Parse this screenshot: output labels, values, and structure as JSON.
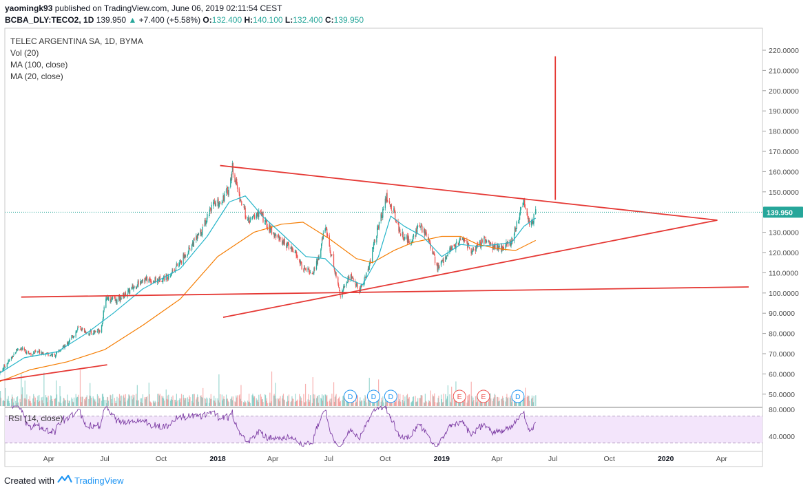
{
  "header": {
    "author": "yaomingk93",
    "published": "published on TradingView.com, June 06, 2019 02:11:54 CEST",
    "symbol": "BCBA_DLY:TECO2, 1D",
    "last": "139.950",
    "change": "+7.400 (+5.58%)",
    "open_label": "O:",
    "open": "132.400",
    "high_label": "H:",
    "high": "140.100",
    "low_label": "L:",
    "low": "132.400",
    "close_label": "C:",
    "close": "139.950"
  },
  "legend": {
    "title": "TELEC ARGENTINA SA, 1D, BYMA",
    "vol": "Vol (20)",
    "ma100": "MA (100, close)",
    "ma20": "MA (20, close)",
    "rsi": "RSI (14, close)"
  },
  "footer": {
    "created_with": "Created with",
    "brand": "TradingView"
  },
  "colors": {
    "up": "#26a69a",
    "down": "#ef5350",
    "ma100": "#f57c00",
    "ma20": "#26b5c9",
    "trendline": "#e53935",
    "rsi_line": "#7e3fa5",
    "rsi_band": "#f3e5fb",
    "price_badge": "#26a69a"
  },
  "chart_data": [
    {
      "type": "candlestick",
      "title": "TELEC ARGENTINA SA, 1D, BYMA",
      "x_ticks": [
        {
          "label": "Apr",
          "date": "2017-04-01",
          "bold": false
        },
        {
          "label": "Jul",
          "date": "2017-07-01",
          "bold": false
        },
        {
          "label": "Oct",
          "date": "2017-10-01",
          "bold": false
        },
        {
          "label": "2018",
          "date": "2018-01-01",
          "bold": true
        },
        {
          "label": "Apr",
          "date": "2018-04-01",
          "bold": false
        },
        {
          "label": "Jul",
          "date": "2018-07-01",
          "bold": false
        },
        {
          "label": "Oct",
          "date": "2018-10-01",
          "bold": false
        },
        {
          "label": "2019",
          "date": "2019-01-01",
          "bold": true
        },
        {
          "label": "Apr",
          "date": "2019-04-01",
          "bold": false
        },
        {
          "label": "Jul",
          "date": "2019-07-01",
          "bold": false
        },
        {
          "label": "Oct",
          "date": "2019-10-01",
          "bold": false
        },
        {
          "label": "2020",
          "date": "2020-01-01",
          "bold": true
        },
        {
          "label": "Apr",
          "date": "2020-04-01",
          "bold": false
        }
      ],
      "y_ticks": [
        50,
        60,
        70,
        80,
        90,
        100,
        110,
        120,
        130,
        140,
        150,
        160,
        170,
        180,
        190,
        200,
        210,
        220
      ],
      "y_tick_labels": [
        "50.0000",
        "60.0000",
        "70.0000",
        "80.0000",
        "90.0000",
        "100.0000",
        "110.0000",
        "120.0000",
        "130.0000",
        "140.0000",
        "150.0000",
        "160.0000",
        "170.0000",
        "180.0000",
        "190.0000",
        "200.0000",
        "210.0000",
        "220.0000"
      ],
      "ylim": [
        45,
        235
      ],
      "last_price": 139.95,
      "last_price_label": "139.950",
      "price_path": [
        [
          "2017-01-09",
          60
        ],
        [
          "2017-01-25",
          66
        ],
        [
          "2017-02-10",
          73
        ],
        [
          "2017-03-01",
          70
        ],
        [
          "2017-03-20",
          71
        ],
        [
          "2017-04-10",
          69
        ],
        [
          "2017-05-01",
          75
        ],
        [
          "2017-05-20",
          83
        ],
        [
          "2017-06-05",
          80
        ],
        [
          "2017-06-25",
          82
        ],
        [
          "2017-07-03",
          98
        ],
        [
          "2017-07-20",
          96
        ],
        [
          "2017-08-10",
          101
        ],
        [
          "2017-09-01",
          107
        ],
        [
          "2017-09-20",
          106
        ],
        [
          "2017-10-10",
          108
        ],
        [
          "2017-11-01",
          115
        ],
        [
          "2017-11-20",
          124
        ],
        [
          "2017-12-05",
          130
        ],
        [
          "2017-12-20",
          142
        ],
        [
          "2018-01-05",
          145
        ],
        [
          "2018-01-20",
          152
        ],
        [
          "2018-01-25",
          162
        ],
        [
          "2018-02-05",
          148
        ],
        [
          "2018-02-20",
          135
        ],
        [
          "2018-03-10",
          140
        ],
        [
          "2018-03-25",
          132
        ],
        [
          "2018-04-15",
          126
        ],
        [
          "2018-05-05",
          121
        ],
        [
          "2018-05-20",
          112
        ],
        [
          "2018-06-05",
          110
        ],
        [
          "2018-06-15",
          118
        ],
        [
          "2018-06-25",
          133
        ],
        [
          "2018-07-10",
          112
        ],
        [
          "2018-07-20",
          99
        ],
        [
          "2018-08-05",
          109
        ],
        [
          "2018-08-20",
          101
        ],
        [
          "2018-09-05",
          113
        ],
        [
          "2018-09-15",
          128
        ],
        [
          "2018-09-25",
          138
        ],
        [
          "2018-10-01",
          148
        ],
        [
          "2018-10-15",
          140
        ],
        [
          "2018-10-25",
          130
        ],
        [
          "2018-11-10",
          125
        ],
        [
          "2018-11-25",
          133
        ],
        [
          "2018-12-10",
          128
        ],
        [
          "2018-12-25",
          112
        ],
        [
          "2019-01-05",
          117
        ],
        [
          "2019-01-20",
          123
        ],
        [
          "2019-02-05",
          127
        ],
        [
          "2019-02-20",
          120
        ],
        [
          "2019-03-10",
          126
        ],
        [
          "2019-03-25",
          123
        ],
        [
          "2019-04-10",
          122
        ],
        [
          "2019-04-25",
          126
        ],
        [
          "2019-05-05",
          136
        ],
        [
          "2019-05-15",
          145
        ],
        [
          "2019-05-25",
          133
        ],
        [
          "2019-06-03",
          139.95
        ]
      ],
      "ma100": [
        [
          "2017-01-09",
          56
        ],
        [
          "2017-03-01",
          62
        ],
        [
          "2017-05-01",
          66
        ],
        [
          "2017-07-01",
          72
        ],
        [
          "2017-09-01",
          84
        ],
        [
          "2017-11-01",
          97
        ],
        [
          "2018-01-01",
          118
        ],
        [
          "2018-03-01",
          130
        ],
        [
          "2018-04-15",
          134
        ],
        [
          "2018-05-20",
          135
        ],
        [
          "2018-07-01",
          127
        ],
        [
          "2018-08-15",
          117
        ],
        [
          "2018-09-10",
          115
        ],
        [
          "2018-10-15",
          121
        ],
        [
          "2018-11-15",
          125
        ],
        [
          "2019-01-01",
          128
        ],
        [
          "2019-02-01",
          128
        ],
        [
          "2019-03-01",
          124
        ],
        [
          "2019-04-01",
          122
        ],
        [
          "2019-05-01",
          121
        ],
        [
          "2019-06-03",
          126
        ]
      ],
      "ma20": [
        [
          "2017-01-09",
          60
        ],
        [
          "2017-02-20",
          68
        ],
        [
          "2017-04-15",
          71
        ],
        [
          "2017-06-01",
          80
        ],
        [
          "2017-07-15",
          90
        ],
        [
          "2017-09-01",
          102
        ],
        [
          "2017-11-01",
          112
        ],
        [
          "2017-12-15",
          128
        ],
        [
          "2018-01-20",
          145
        ],
        [
          "2018-02-15",
          148
        ],
        [
          "2018-03-15",
          138
        ],
        [
          "2018-04-20",
          128
        ],
        [
          "2018-05-25",
          118
        ],
        [
          "2018-06-25",
          117
        ],
        [
          "2018-07-25",
          108
        ],
        [
          "2018-08-25",
          104
        ],
        [
          "2018-09-20",
          118
        ],
        [
          "2018-10-10",
          138
        ],
        [
          "2018-11-01",
          133
        ],
        [
          "2018-12-01",
          128
        ],
        [
          "2019-01-01",
          118
        ],
        [
          "2019-02-01",
          124
        ],
        [
          "2019-03-01",
          123
        ],
        [
          "2019-04-01",
          124
        ],
        [
          "2019-04-25",
          125
        ],
        [
          "2019-05-15",
          133
        ],
        [
          "2019-06-03",
          137
        ]
      ],
      "trendlines": [
        {
          "from": [
            "2017-01-06",
            56.5
          ],
          "to": [
            "2017-07-05",
            64.5
          ]
        },
        {
          "from": [
            "2017-02-15",
            98
          ],
          "to": [
            "2020-05-15",
            103
          ]
        },
        {
          "from": [
            "2018-01-05",
            163
          ],
          "to": [
            "2020-03-25",
            136
          ]
        },
        {
          "from": [
            "2018-01-10",
            88
          ],
          "to": [
            "2020-03-25",
            136
          ]
        },
        {
          "from": [
            "2019-07-05",
            146
          ],
          "to": [
            "2019-07-05",
            217
          ]
        }
      ],
      "event_markers": [
        {
          "label": "D",
          "date": "2018-08-05",
          "kind": "dividend"
        },
        {
          "label": "D",
          "date": "2018-09-12",
          "kind": "dividend"
        },
        {
          "label": "D",
          "date": "2018-10-10",
          "kind": "dividend"
        },
        {
          "label": "E",
          "date": "2019-01-30",
          "kind": "earnings"
        },
        {
          "label": "E",
          "date": "2019-03-10",
          "kind": "earnings"
        },
        {
          "label": "D",
          "date": "2019-05-05",
          "kind": "dividend"
        }
      ]
    },
    {
      "type": "line",
      "title": "RSI (14, close)",
      "y_ticks": [
        40,
        80
      ],
      "y_tick_labels": [
        "40.0000",
        "80.0000"
      ],
      "band": [
        30,
        70
      ],
      "ylim": [
        25,
        85
      ]
    }
  ]
}
